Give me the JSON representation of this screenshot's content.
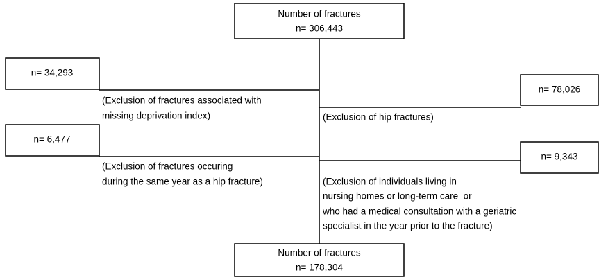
{
  "nodes": [
    {
      "lines": [
        "Number of fractures",
        "n= 306,443"
      ]
    },
    {
      "lines": [
        "n= 34,293"
      ]
    },
    {
      "lines": [
        "n= 78,026"
      ]
    },
    {
      "lines": [
        "n= 6,477"
      ]
    },
    {
      "lines": [
        "n= 9,343"
      ]
    },
    {
      "lines": [
        "Number of fractures",
        "n= 178,304"
      ]
    }
  ],
  "exclusions": [
    {
      "lines": [
        "(Exclusion of fractures associated with",
        "missing deprivation index)"
      ]
    },
    {
      "lines": [
        "(Exclusion of hip fractures)"
      ]
    },
    {
      "lines": [
        "(Exclusion of fractures occuring",
        "during the same year as a hip fracture)"
      ]
    },
    {
      "lines": [
        "(Exclusion of individuals living in",
        "nursing homes or long-term care  or",
        "who had a medical consultation with a geriatric",
        "specialist in the year prior to the fracture)"
      ]
    }
  ]
}
